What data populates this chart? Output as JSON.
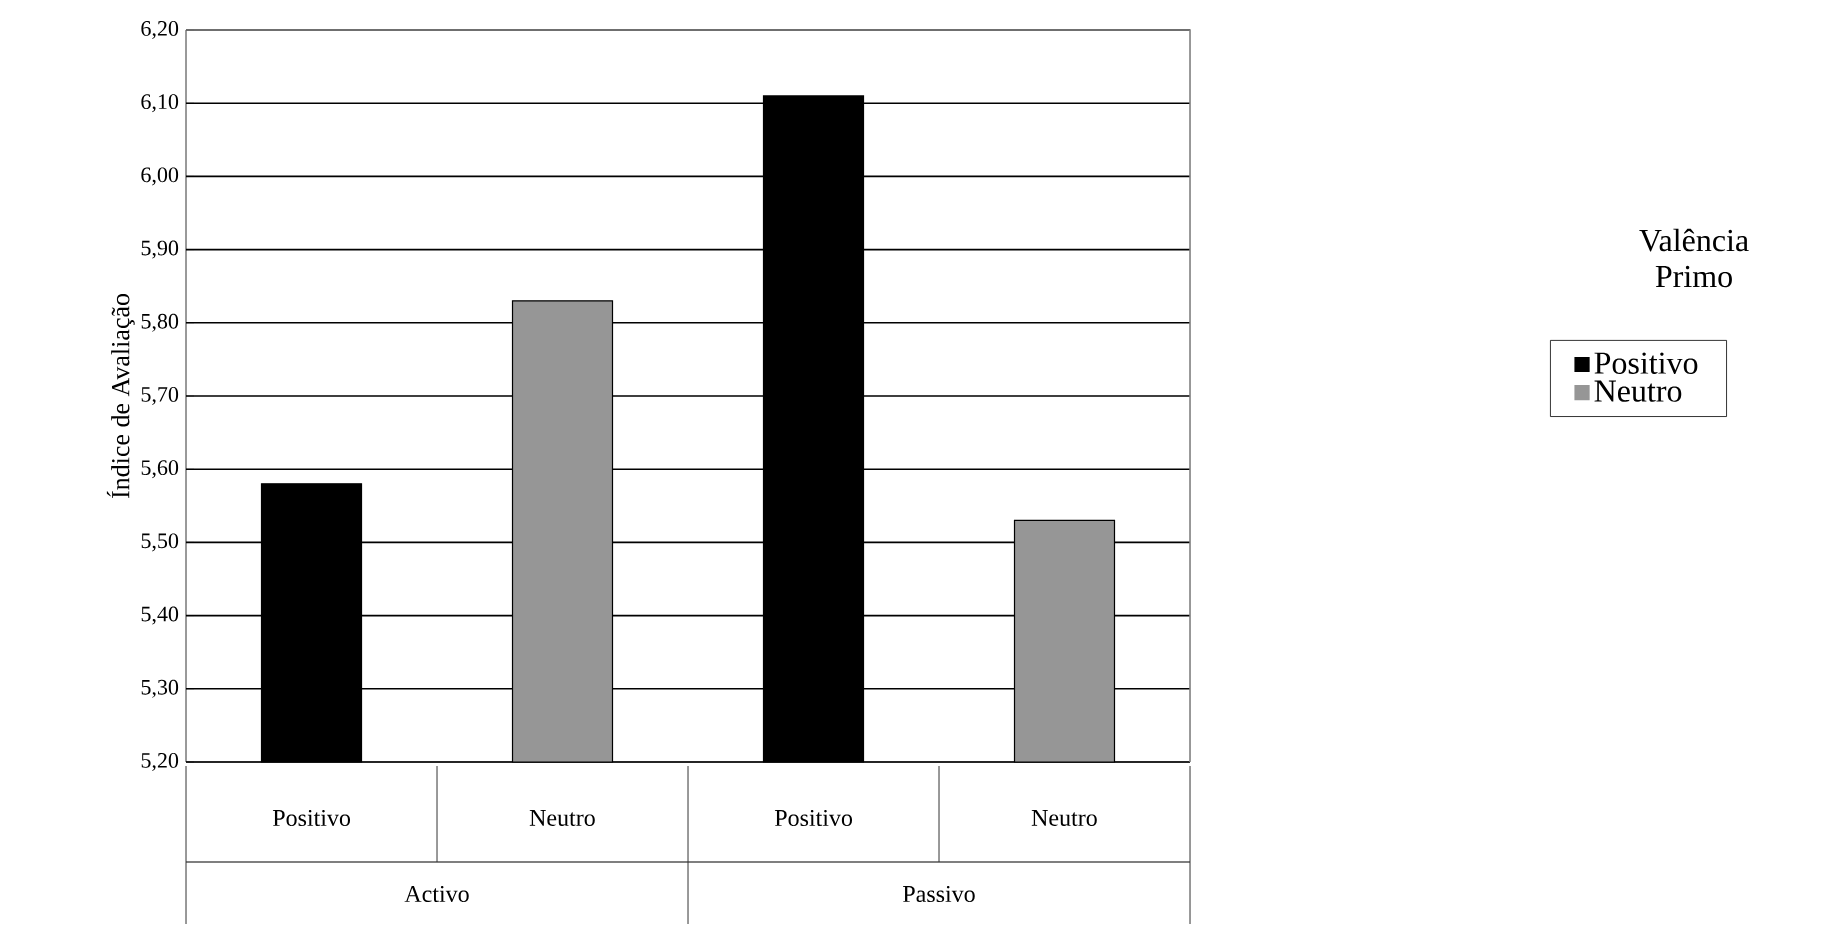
{
  "chart_data": {
    "type": "bar",
    "ylabel": "Índice de Avaliação",
    "legend_title": "Valência Primo",
    "categories": [
      "Positivo",
      "Neutro",
      "Positivo",
      "Neutro"
    ],
    "series": [
      {
        "name": "Positivo",
        "color": "#000000",
        "values": [
          5.58,
          null,
          6.11,
          null
        ]
      },
      {
        "name": "Neutro",
        "color": "#969696",
        "values": [
          null,
          5.83,
          null,
          5.53
        ]
      }
    ],
    "annotations": [
      "Activo",
      "Passivo"
    ],
    "ylim": [
      5.2,
      6.2
    ],
    "yticks": [
      {
        "value": 5.2,
        "label": "5,20"
      },
      {
        "value": 5.3,
        "label": "5,30"
      },
      {
        "value": 5.4,
        "label": "5,40"
      },
      {
        "value": 5.5,
        "label": "5,50"
      },
      {
        "value": 5.6,
        "label": "5,60"
      },
      {
        "value": 5.7,
        "label": "5,70"
      },
      {
        "value": 5.8,
        "label": "5,80"
      },
      {
        "value": 5.9,
        "label": "5,90"
      },
      {
        "value": 6.0,
        "label": "6,00"
      },
      {
        "value": 6.1,
        "label": "6,10"
      },
      {
        "value": 6.2,
        "label": "6,20"
      }
    ],
    "grid": "y",
    "legend": "right"
  }
}
